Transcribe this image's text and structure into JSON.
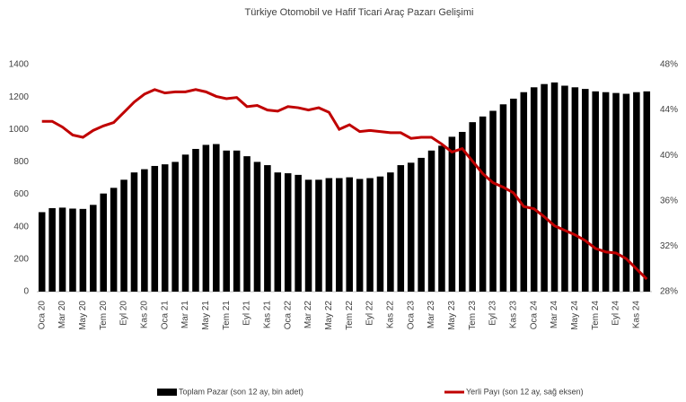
{
  "chart_data": {
    "type": "bar_line",
    "title": "Türkiye Otomobil ve Hafif Ticari Araç Pazarı Gelişimi",
    "categories": [
      "Oca 20",
      null,
      "Mar 20",
      null,
      "May 20",
      null,
      "Tem 20",
      null,
      "Eyl 20",
      null,
      "Kas 20",
      null,
      "Oca 21",
      null,
      "Mar 21",
      null,
      "May 21",
      null,
      "Tem 21",
      null,
      "Eyl 21",
      null,
      "Kas 21",
      null,
      "Oca 22",
      null,
      "Mar 22",
      null,
      "May 22",
      null,
      "Tem 22",
      null,
      "Eyl 22",
      null,
      "Kas 22",
      null,
      "Oca 23",
      null,
      "Mar 23",
      null,
      "May 23",
      null,
      "Tem 23",
      null,
      "Eyl 23",
      null,
      "Kas 23",
      null,
      "Oca 24",
      null,
      "Mar 24",
      null,
      "May 24",
      null,
      "Tem 24",
      null,
      "Eyl 24",
      null,
      "Kas 24",
      null
    ],
    "series": [
      {
        "name": "Toplam Pazar (son 12 ay, bin adet)",
        "color": "#000000",
        "kind": "bar",
        "values": [
          490,
          515,
          518,
          512,
          510,
          535,
          605,
          640,
          690,
          735,
          755,
          775,
          785,
          800,
          845,
          880,
          905,
          910,
          870,
          870,
          835,
          800,
          780,
          735,
          730,
          720,
          690,
          690,
          700,
          700,
          705,
          695,
          700,
          710,
          735,
          780,
          795,
          825,
          870,
          900,
          955,
          985,
          1045,
          1080,
          1115,
          1155,
          1190,
          1230,
          1260,
          1280,
          1290,
          1270,
          1260,
          1250,
          1235,
          1230,
          1225,
          1220,
          1230,
          1235
        ]
      },
      {
        "name": "Yerli Payı (son 12 ay, sağ eksen)",
        "color": "#c00000",
        "kind": "line",
        "axis": "y2",
        "values": [
          43.0,
          43.0,
          42.5,
          41.8,
          41.6,
          42.2,
          42.6,
          42.9,
          43.8,
          44.7,
          45.4,
          45.8,
          45.5,
          45.6,
          45.6,
          45.8,
          45.6,
          45.2,
          45.0,
          45.1,
          44.3,
          44.4,
          44.0,
          43.9,
          44.3,
          44.2,
          44.0,
          44.2,
          43.8,
          42.3,
          42.7,
          42.1,
          42.2,
          42.1,
          42.0,
          42.0,
          41.5,
          41.6,
          41.6,
          41.0,
          40.3,
          40.6,
          39.5,
          38.4,
          37.6,
          37.2,
          36.7,
          35.5,
          35.3,
          34.6,
          33.8,
          33.4,
          33.0,
          32.5,
          31.8,
          31.5,
          31.4,
          30.9,
          30.0,
          29.1
        ]
      }
    ],
    "ylim": [
      0,
      1400
    ],
    "yticks": [
      0,
      200,
      400,
      600,
      800,
      1000,
      1200,
      1400
    ],
    "y2lim": [
      28,
      48
    ],
    "y2ticks": [
      {
        "value": 28,
        "label": "28%"
      },
      {
        "value": 32,
        "label": "32%"
      },
      {
        "value": 36,
        "label": "36%"
      },
      {
        "value": 40,
        "label": "40%"
      },
      {
        "value": 44,
        "label": "44%"
      },
      {
        "value": 48,
        "label": "48%"
      }
    ],
    "legend": "bottom"
  }
}
